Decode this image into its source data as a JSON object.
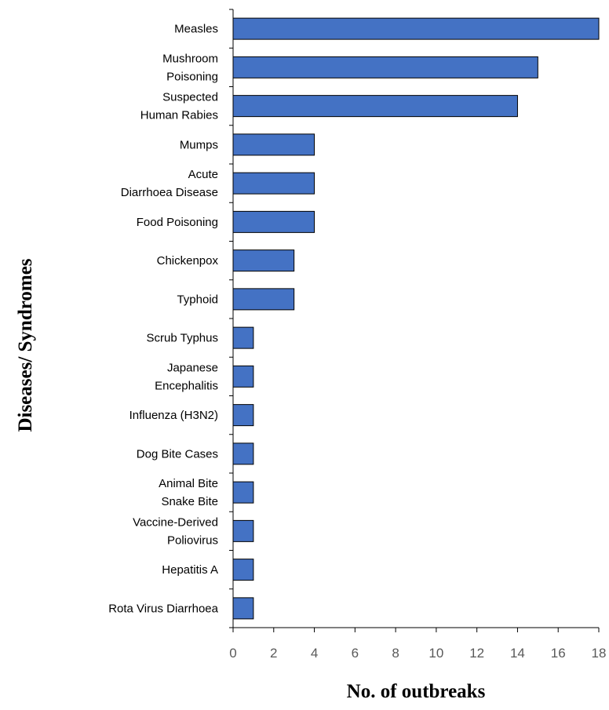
{
  "chart_data": {
    "type": "bar",
    "orientation": "horizontal",
    "categories": [
      [
        "Measles"
      ],
      [
        "Mushroom",
        "Poisoning"
      ],
      [
        "Suspected",
        "Human Rabies"
      ],
      [
        "Mumps"
      ],
      [
        "Acute",
        "Diarrhoea Disease"
      ],
      [
        "Food Poisoning"
      ],
      [
        "Chickenpox"
      ],
      [
        "Typhoid"
      ],
      [
        "Scrub Typhus"
      ],
      [
        "Japanese",
        "Encephalitis"
      ],
      [
        "Influenza (H3N2)"
      ],
      [
        "Dog Bite Cases"
      ],
      [
        "Animal Bite",
        "Snake Bite"
      ],
      [
        "Vaccine-Derived",
        "Poliovirus"
      ],
      [
        "Hepatitis A"
      ],
      [
        "Rota Virus Diarrhoea"
      ]
    ],
    "values": [
      18,
      15,
      14,
      4,
      4,
      4,
      3,
      3,
      1,
      1,
      1,
      1,
      1,
      1,
      1,
      1
    ],
    "xlabel": "No. of outbreaks",
    "ylabel": "Diseases/ Syndromes",
    "xlim": [
      0,
      18
    ],
    "xticks": [
      "0",
      "2",
      "4",
      "6",
      "8",
      "10",
      "12",
      "14",
      "16",
      "18"
    ],
    "bar_color": "#4472C4",
    "bar_edge_color": "#000000",
    "grid": false,
    "legend": "none"
  }
}
